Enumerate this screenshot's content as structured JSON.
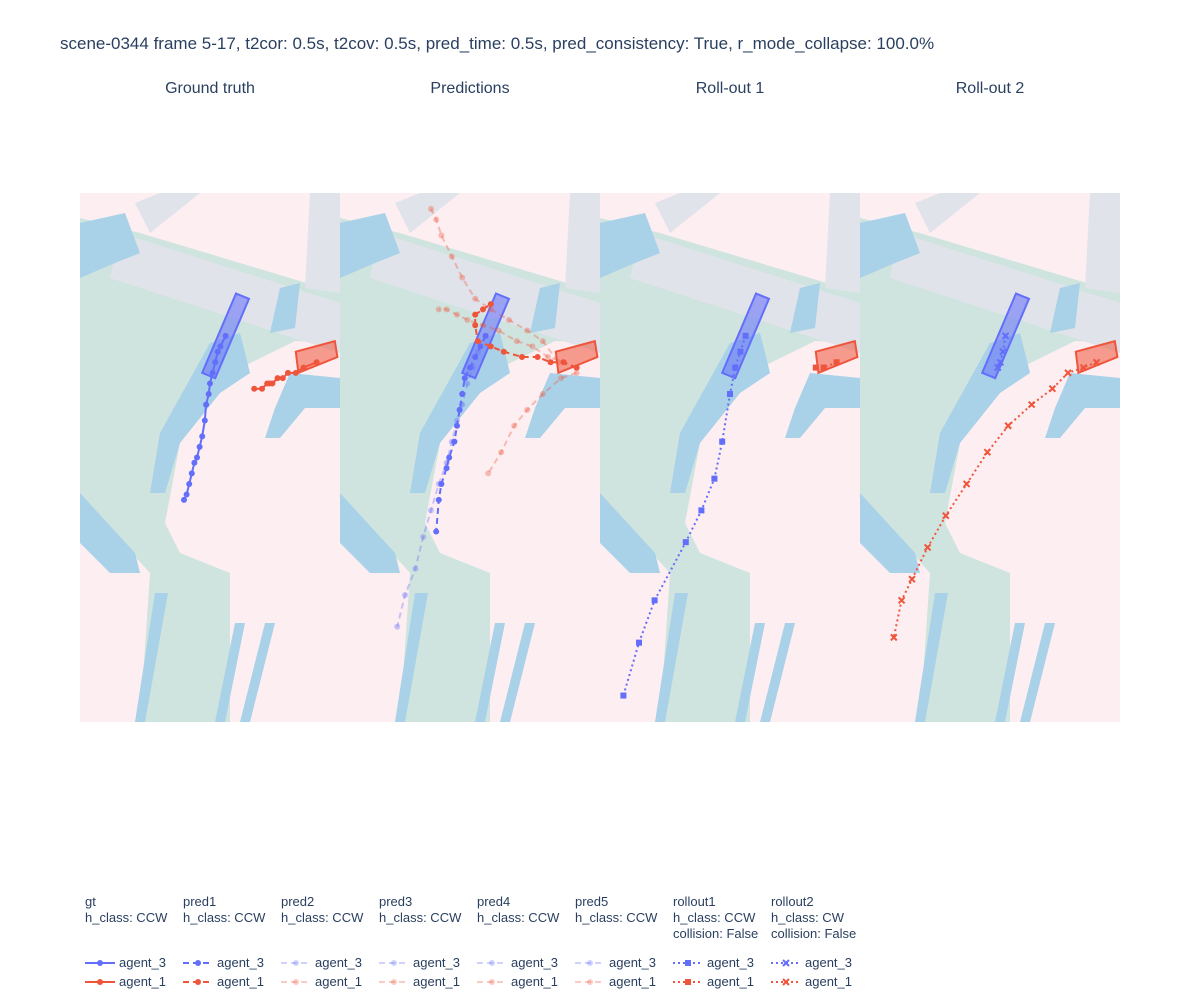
{
  "title": "scene-0344 frame 5-17, t2cor: 0.5s, t2cov: 0.5s, pred_time: 0.5s, pred_consistency: True, r_mode_collapse: 100.0%",
  "subplot_titles": [
    "Ground truth",
    "Predictions",
    "Roll-out 1",
    "Roll-out 2"
  ],
  "colors": {
    "agent_3": "#636efa",
    "agent_1": "#ef553b",
    "map_drivable": "#cfe4df",
    "map_walkway": "#a9d1e7",
    "map_background": "#fdeef2",
    "map_crossing": "#e1e3ea"
  },
  "legend": [
    {
      "title": "gt",
      "lines": [
        "h_class: CCW"
      ],
      "style": "solid",
      "marker": "circle",
      "faded": false
    },
    {
      "title": "pred1",
      "lines": [
        "h_class: CCW"
      ],
      "style": "dash",
      "marker": "circle",
      "faded": false
    },
    {
      "title": "pred2",
      "lines": [
        "h_class: CCW"
      ],
      "style": "dash",
      "marker": "circle",
      "faded": true
    },
    {
      "title": "pred3",
      "lines": [
        "h_class: CCW"
      ],
      "style": "dash",
      "marker": "circle",
      "faded": true
    },
    {
      "title": "pred4",
      "lines": [
        "h_class: CCW"
      ],
      "style": "dash",
      "marker": "circle",
      "faded": true
    },
    {
      "title": "pred5",
      "lines": [
        "h_class: CCW"
      ],
      "style": "dash",
      "marker": "circle",
      "faded": true
    },
    {
      "title": "rollout1",
      "lines": [
        "h_class: CCW",
        "collision: False"
      ],
      "style": "dot",
      "marker": "square",
      "faded": false
    },
    {
      "title": "rollout2",
      "lines": [
        "h_class: CW",
        "collision: False"
      ],
      "style": "dot",
      "marker": "x",
      "faded": false
    }
  ],
  "legend_agents": [
    "agent_3",
    "agent_1"
  ],
  "chart_data": {
    "type": "scatter",
    "xlim": [
      0,
      100
    ],
    "ylim": [
      0,
      100
    ],
    "grid": false,
    "legend_position": "bottom",
    "agent_boxes": [
      {
        "agent": "agent_3",
        "corners": [
          [
            60,
            81
          ],
          [
            65,
            80
          ],
          [
            52,
            65
          ],
          [
            47,
            66
          ]
        ]
      },
      {
        "agent": "agent_1",
        "corners": [
          [
            83,
            70
          ],
          [
            98,
            72
          ],
          [
            99,
            69
          ],
          [
            84,
            66
          ]
        ]
      }
    ],
    "panels": [
      {
        "name": "Ground truth",
        "series": [
          {
            "name": "agent_3",
            "legend": "gt",
            "style": "solid",
            "marker": "circle",
            "opacity": 1,
            "x": [
              56,
              54,
              53,
              52,
              51,
              50,
              49.5,
              48.5,
              48,
              47,
              46,
              45,
              44,
              43,
              42,
              41,
              40
            ],
            "y": [
              73,
              71,
              70,
              68,
              66,
              64,
              62,
              60,
              57,
              54,
              52,
              50,
              49,
              47,
              45,
              43,
              42
            ]
          },
          {
            "name": "agent_1",
            "legend": "gt",
            "style": "solid",
            "marker": "circle",
            "opacity": 1,
            "x": [
              91,
              86,
              83,
              80,
              78,
              76,
              74,
              73,
              72,
              70,
              67
            ],
            "y": [
              68,
              67,
              66,
              66,
              65,
              65,
              64,
              64,
              64,
              63,
              63
            ]
          }
        ]
      },
      {
        "name": "Predictions",
        "series": [
          {
            "name": "agent_3",
            "legend": "pred1",
            "style": "dash",
            "marker": "circle",
            "opacity": 1,
            "x": [
              56,
              54,
              52,
              50,
              48,
              47,
              46,
              45,
              44,
              42,
              41,
              39,
              38,
              37
            ],
            "y": [
              73,
              71,
              69,
              67,
              65,
              62,
              59,
              56,
              53,
              50,
              48,
              45,
              42,
              36
            ]
          },
          {
            "name": "agent_1",
            "legend": "pred1",
            "style": "dash",
            "marker": "circle",
            "opacity": 1,
            "x": [
              91,
              86,
              81,
              76,
              70,
              63,
              58,
              53,
              52,
              52,
              55,
              58
            ],
            "y": [
              67,
              68,
              68,
              69,
              69,
              70,
              71,
              72,
              75,
              77,
              78,
              79
            ]
          },
          {
            "name": "agent_3",
            "legend": "pred2",
            "style": "dash",
            "marker": "circle",
            "opacity": 0.35,
            "x": [
              56,
              53,
              51,
              49,
              47,
              45,
              43,
              41,
              38,
              35,
              32,
              29,
              25,
              22
            ],
            "y": [
              73,
              70,
              67,
              64,
              60,
              57,
              53,
              49,
              45,
              40,
              35,
              29,
              24,
              18
            ]
          },
          {
            "name": "agent_1",
            "legend": "pred2",
            "style": "dash",
            "marker": "circle",
            "opacity": 0.35,
            "x": [
              91,
              85,
              78,
              72,
              67,
              62,
              57
            ],
            "y": [
              66,
              65,
              62,
              59,
              56,
              51,
              47
            ]
          },
          {
            "name": "agent_1",
            "legend": "pred3",
            "style": "dash",
            "marker": "circle",
            "opacity": 0.35,
            "x": [
              91,
              84,
              78,
              72,
              65,
              58,
              52,
              47,
              43,
              39,
              37,
              35
            ],
            "y": [
              67,
              68,
              72,
              74,
              76,
              78,
              80,
              84,
              88,
              92,
              95,
              97
            ]
          },
          {
            "name": "agent_1",
            "legend": "pred4",
            "style": "dash",
            "marker": "circle",
            "opacity": 0.35,
            "x": [
              91,
              86,
              80,
              74,
              68,
              61,
              55,
              49,
              45,
              41,
              38
            ],
            "y": [
              67,
              68,
              69,
              71,
              72,
              74,
              75,
              76,
              77,
              78,
              78
            ]
          }
        ]
      },
      {
        "name": "Roll-out 1",
        "series": [
          {
            "name": "agent_3",
            "legend": "rollout1",
            "style": "dot",
            "marker": "square",
            "opacity": 1,
            "x": [
              56,
              54,
              52,
              50,
              47,
              44,
              39,
              33,
              21,
              15,
              9
            ],
            "y": [
              73,
              70,
              67,
              62,
              53,
              46,
              40,
              34,
              23,
              15,
              5
            ]
          },
          {
            "name": "agent_1",
            "legend": "rollout1",
            "style": "dot",
            "marker": "square",
            "opacity": 1,
            "x": [
              91,
              86,
              83
            ],
            "y": [
              68,
              67,
              67
            ]
          }
        ]
      },
      {
        "name": "Roll-out 2",
        "series": [
          {
            "name": "agent_3",
            "legend": "rollout2",
            "style": "dot",
            "marker": "x",
            "opacity": 1,
            "x": [
              56,
              55,
              54,
              53
            ],
            "y": [
              73,
              70,
              68,
              67
            ]
          },
          {
            "name": "agent_1",
            "legend": "rollout2",
            "style": "dot",
            "marker": "x",
            "opacity": 1,
            "x": [
              91,
              86,
              80,
              74,
              66,
              57,
              49,
              41,
              33,
              26,
              20,
              16,
              13
            ],
            "y": [
              68,
              67,
              66,
              63,
              60,
              56,
              51,
              45,
              39,
              33,
              27,
              23,
              16
            ]
          }
        ]
      }
    ]
  }
}
